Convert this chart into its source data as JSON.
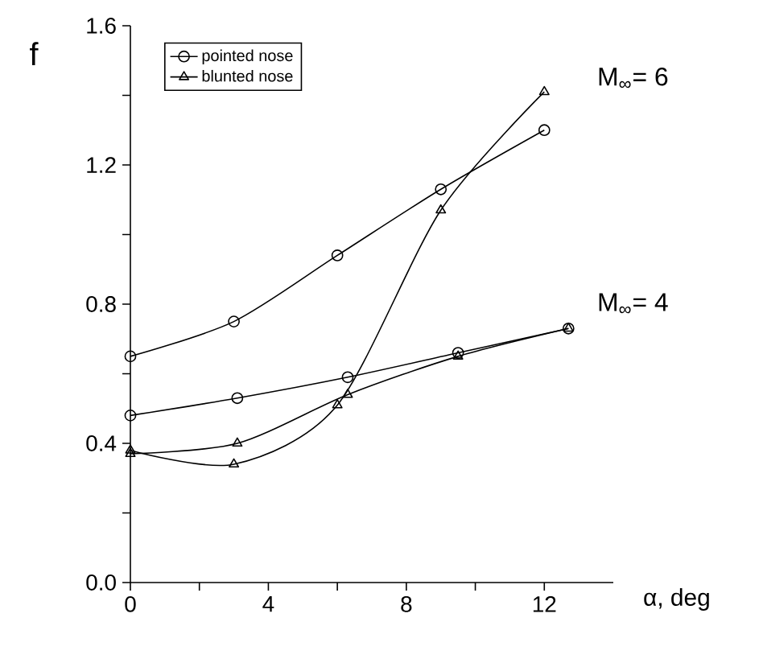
{
  "chart_data": {
    "type": "line",
    "xlabel": "α, deg",
    "ylabel": "f",
    "xlim": [
      0,
      14
    ],
    "ylim": [
      0,
      1.6
    ],
    "xticks": [
      0,
      {
        "value": 2,
        "label": null
      },
      4,
      {
        "value": 6,
        "label": null
      },
      8,
      {
        "value": 10,
        "label": null
      },
      12
    ],
    "yticks": [
      {
        "value": 0,
        "label": "0.0"
      },
      {
        "value": 0.2,
        "label": null
      },
      0.4,
      {
        "value": 0.6,
        "label": null
      },
      0.8,
      {
        "value": 1.0,
        "label": null
      },
      1.2,
      {
        "value": 1.4,
        "label": null
      },
      1.6
    ],
    "legend": "top left",
    "grid": false,
    "series": [
      {
        "name": "pointed nose",
        "color": "#000000",
        "marker": "circle",
        "x": [
          0,
          3,
          6,
          9,
          12
        ],
        "values": [
          0.65,
          0.75,
          0.94,
          1.13,
          1.3
        ]
      },
      {
        "name": "blunted nose",
        "color": "#000000",
        "marker": "triangle",
        "x": [
          0,
          3,
          6,
          9,
          12
        ],
        "values": [
          0.38,
          0.34,
          0.51,
          1.07,
          1.41
        ]
      },
      {
        "color": "#000000",
        "marker": "circle",
        "x": [
          0,
          3.1,
          6.3,
          9.5,
          12.7
        ],
        "values": [
          0.48,
          0.53,
          0.59,
          0.66,
          0.73
        ]
      },
      {
        "color": "#000000",
        "marker": "triangle",
        "x": [
          0,
          3.1,
          6.3,
          9.5,
          12.7
        ],
        "values": [
          0.37,
          0.4,
          0.54,
          0.65,
          0.73
        ]
      }
    ],
    "annotations": [
      "M$_{∞}$= 6",
      "M$_{∞}$= 4"
    ]
  }
}
